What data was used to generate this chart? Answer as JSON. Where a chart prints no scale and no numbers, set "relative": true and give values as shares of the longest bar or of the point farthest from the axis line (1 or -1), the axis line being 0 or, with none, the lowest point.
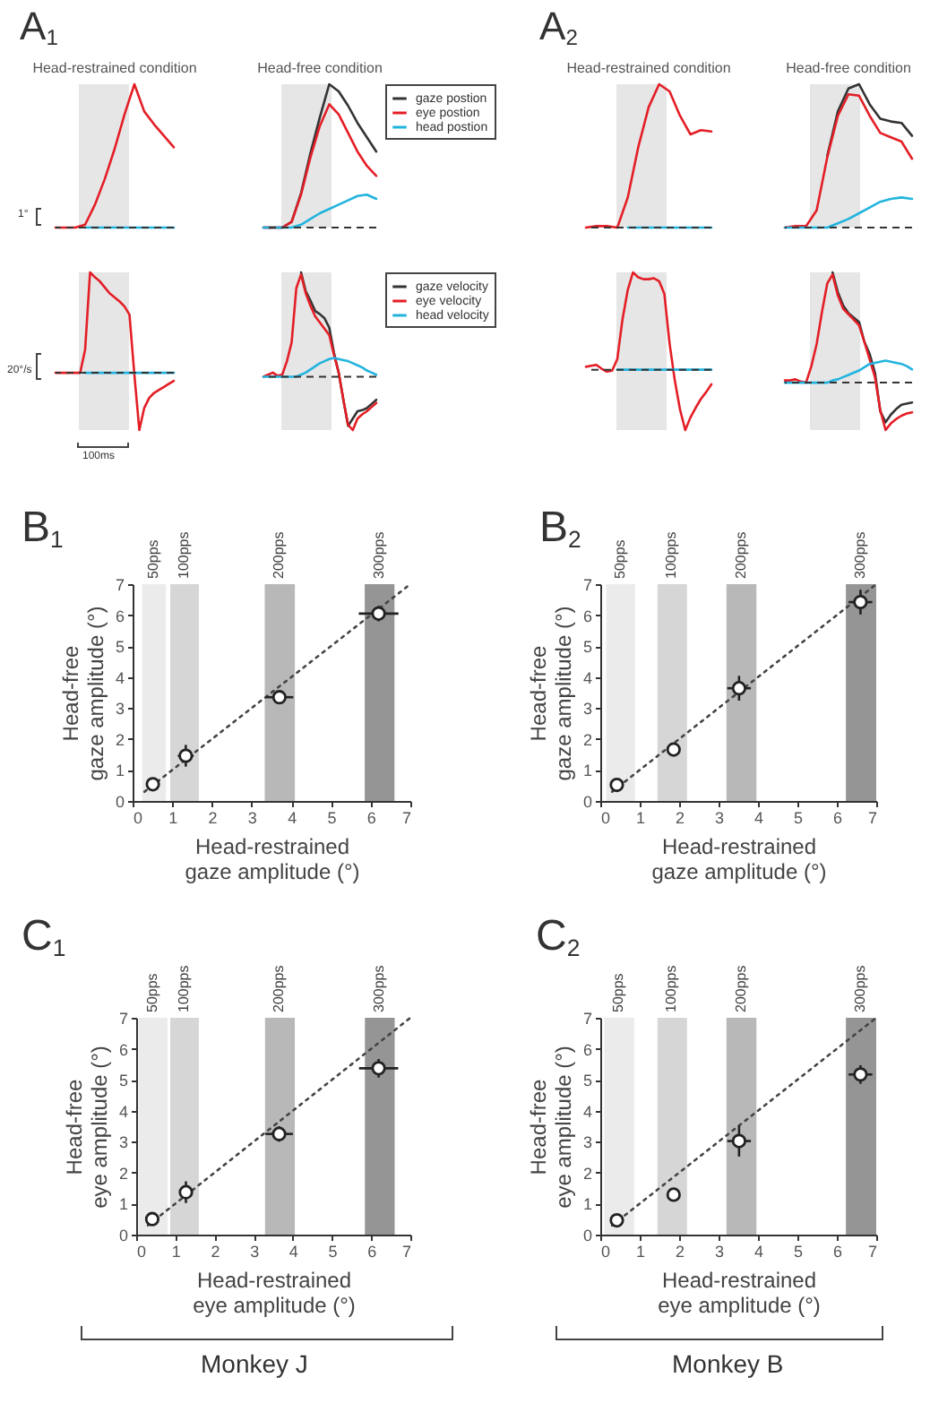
{
  "chart_data": [
    {
      "type": "line",
      "title": "Head-restrained condition",
      "relative": true,
      "tick_labels": false,
      "annotations": [
        "A$_{1}$",
        "1°"
      ],
      "categories": [
        null,
        null,
        null,
        null,
        null,
        null,
        null,
        null,
        null,
        null,
        null,
        null,
        null
      ],
      "ref_lines": [
        {
          "axis": "y",
          "value": 0,
          "line_style": "dashed",
          "color": "#333333"
        }
      ],
      "series": [
        {
          "color": "#e41e26",
          "values": [
            0,
            0,
            0,
            0.02,
            0.16,
            0.34,
            0.55,
            0.79,
            1,
            0.81,
            0.72,
            0.64,
            0.56
          ]
        },
        {
          "color": "#22b4de",
          "values": [
            null,
            null,
            null,
            0,
            0,
            0,
            0,
            0,
            0,
            0,
            0,
            0,
            0
          ]
        }
      ]
    },
    {
      "type": "line",
      "title": "Head-free condition",
      "relative": true,
      "tick_labels": false,
      "legend": "right",
      "categories": [
        null,
        null,
        null,
        null,
        null,
        null,
        null,
        null,
        null,
        null,
        null,
        null,
        null
      ],
      "ref_lines": [
        {
          "axis": "y",
          "value": 0,
          "line_style": "dashed",
          "color": "#333333"
        }
      ],
      "series": [
        {
          "name": "gaze postion",
          "color": "#333333",
          "values": [
            0,
            0,
            0,
            0.04,
            0.24,
            0.52,
            0.77,
            1,
            0.95,
            0.85,
            0.73,
            0.63,
            0.53
          ]
        },
        {
          "name": "eye postion",
          "color": "#e41e26",
          "values": [
            0,
            0,
            0,
            0.04,
            0.23,
            0.49,
            0.71,
            0.86,
            0.79,
            0.66,
            0.53,
            0.43,
            0.36
          ]
        },
        {
          "name": "head postion",
          "color": "#22b4de",
          "values": [
            0,
            0,
            0,
            0,
            0.02,
            0.06,
            0.1,
            0.13,
            0.16,
            0.19,
            0.22,
            0.23,
            0.2
          ]
        }
      ]
    },
    {
      "type": "line",
      "title": "Head-restrained condition",
      "relative": true,
      "tick_labels": false,
      "annotations": [
        "A$_{2}$"
      ],
      "categories": [
        null,
        null,
        null,
        null,
        null,
        null,
        null,
        null,
        null,
        null,
        null,
        null,
        null
      ],
      "ref_lines": [
        {
          "axis": "y",
          "value": 0,
          "line_style": "dashed",
          "color": "#333333"
        }
      ],
      "series": [
        {
          "color": "#e41e26",
          "values": [
            0,
            0.01,
            0.01,
            0,
            0.21,
            0.56,
            0.84,
            1,
            0.95,
            0.78,
            0.65,
            0.68,
            0.67
          ]
        },
        {
          "color": "#22b4de",
          "values": [
            null,
            null,
            null,
            null,
            0,
            0,
            0,
            0,
            0,
            0,
            0,
            0,
            0
          ]
        }
      ]
    },
    {
      "type": "line",
      "title": "Head-free condition",
      "relative": true,
      "tick_labels": false,
      "categories": [
        null,
        null,
        null,
        null,
        null,
        null,
        null,
        null,
        null,
        null,
        null,
        null,
        null
      ],
      "ref_lines": [
        {
          "axis": "y",
          "value": 0,
          "line_style": "dashed",
          "color": "#333333"
        }
      ],
      "series": [
        {
          "color": "#333333",
          "values": [
            null,
            null,
            null,
            null,
            0.5,
            0.81,
            0.97,
            1,
            0.86,
            0.76,
            0.74,
            0.73,
            0.64
          ]
        },
        {
          "color": "#e41e26",
          "values": [
            0,
            0.01,
            0.01,
            0.12,
            0.49,
            0.78,
            0.93,
            0.92,
            0.78,
            0.66,
            0.63,
            0.6,
            0.48
          ]
        },
        {
          "color": "#22b4de",
          "values": [
            0,
            0,
            0,
            0,
            0,
            0.03,
            0.06,
            0.1,
            0.14,
            0.18,
            0.2,
            0.21,
            0.2
          ]
        }
      ]
    },
    {
      "type": "line",
      "relative": true,
      "tick_labels": false,
      "annotations": [
        "20°/s",
        "100ms"
      ],
      "categories": [
        null,
        null,
        null,
        null,
        null,
        null,
        null,
        null,
        null,
        null,
        null,
        null,
        null,
        null,
        null,
        null,
        null,
        null,
        null,
        null,
        null,
        null,
        null,
        null,
        null
      ],
      "ref_lines": [
        {
          "axis": "y",
          "value": 0,
          "line_style": "dashed",
          "color": "#333333"
        }
      ],
      "series": [
        {
          "color": "#e41e26",
          "values": [
            0,
            0,
            0,
            0,
            0,
            0,
            0.23,
            1,
            0.95,
            0.91,
            0.85,
            0.79,
            0.75,
            0.71,
            0.66,
            0.58,
            -0.02,
            -0.57,
            -0.35,
            -0.25,
            -0.2,
            -0.17,
            -0.14,
            -0.11,
            -0.08
          ]
        },
        {
          "color": "#22b4de",
          "values": [
            null,
            null,
            null,
            null,
            null,
            null,
            0,
            0,
            0,
            0,
            0,
            0,
            0,
            0,
            0,
            0,
            0,
            0,
            0,
            0,
            0,
            0,
            0,
            0,
            0
          ]
        }
      ]
    },
    {
      "type": "line",
      "relative": true,
      "tick_labels": false,
      "legend": "right",
      "categories": [
        null,
        null,
        null,
        null,
        null,
        null,
        null,
        null,
        null,
        null,
        null,
        null,
        null,
        null,
        null,
        null,
        null,
        null,
        null,
        null,
        null,
        null,
        null,
        null,
        null
      ],
      "ref_lines": [
        {
          "axis": "y",
          "value": 0,
          "line_style": "dashed",
          "color": "#333333"
        }
      ],
      "series": [
        {
          "name": "gaze velocity",
          "color": "#333333",
          "values": [
            null,
            null,
            null,
            null,
            null,
            null,
            null,
            null,
            1,
            0.82,
            0.73,
            0.63,
            0.6,
            0.56,
            0.47,
            0.23,
            0.04,
            -0.22,
            -0.47,
            -0.4,
            -0.33,
            -0.32,
            -0.3,
            -0.26,
            -0.22
          ]
        },
        {
          "name": "eye velocity",
          "color": "#e41e26",
          "values": [
            0,
            0.02,
            0.04,
            0.01,
            0.02,
            0.15,
            0.33,
            0.85,
            0.98,
            0.8,
            0.68,
            0.58,
            0.52,
            0.46,
            0.4,
            0.21,
            0.04,
            -0.22,
            -0.46,
            -0.51,
            -0.4,
            -0.36,
            -0.33,
            -0.29,
            -0.25
          ]
        },
        {
          "name": "head velocity",
          "color": "#22b4de",
          "values": [
            0,
            0,
            0,
            0,
            0,
            0,
            0,
            0,
            0.02,
            0.04,
            0.07,
            0.1,
            0.13,
            0.15,
            0.17,
            0.18,
            0.17,
            0.16,
            0.15,
            0.13,
            0.11,
            0.09,
            0.06,
            0.04,
            0.02
          ]
        }
      ]
    },
    {
      "type": "line",
      "relative": true,
      "tick_labels": false,
      "categories": [
        null,
        null,
        null,
        null,
        null,
        null,
        null,
        null,
        null,
        null,
        null,
        null,
        null,
        null,
        null,
        null,
        null,
        null,
        null,
        null,
        null,
        null,
        null,
        null,
        null
      ],
      "ref_lines": [
        {
          "axis": "y",
          "value": 0,
          "line_style": "dashed",
          "color": "#333333"
        }
      ],
      "series": [
        {
          "color": "#e41e26",
          "values": [
            0.03,
            0.04,
            0.05,
            0.01,
            -0.02,
            -0.01,
            0.11,
            0.52,
            0.82,
            1,
            0.95,
            0.93,
            0.93,
            0.94,
            0.91,
            0.78,
            0.27,
            -0.11,
            -0.41,
            -0.62,
            -0.49,
            -0.39,
            -0.3,
            -0.23,
            -0.15
          ]
        },
        {
          "color": "#22b4de",
          "values": [
            null,
            null,
            null,
            null,
            null,
            null,
            0,
            0,
            0,
            0,
            0,
            0,
            0,
            0,
            0,
            0,
            0,
            0,
            0,
            0,
            0,
            0,
            0,
            0,
            0
          ]
        }
      ]
    },
    {
      "type": "line",
      "relative": true,
      "tick_labels": false,
      "categories": [
        null,
        null,
        null,
        null,
        null,
        null,
        null,
        null,
        null,
        null,
        null,
        null,
        null,
        null,
        null,
        null,
        null,
        null,
        null,
        null,
        null,
        null,
        null,
        null,
        null
      ],
      "ref_lines": [
        {
          "axis": "y",
          "value": 0,
          "line_style": "dashed",
          "color": "#333333"
        }
      ],
      "series": [
        {
          "color": "#333333",
          "values": [
            null,
            null,
            null,
            null,
            null,
            null,
            null,
            null,
            null,
            1,
            0.82,
            0.7,
            0.63,
            0.59,
            0.55,
            0.37,
            0.26,
            0.09,
            -0.26,
            -0.36,
            -0.29,
            -0.24,
            -0.2,
            -0.19,
            -0.18
          ]
        },
        {
          "color": "#e41e26",
          "values": [
            0.02,
            0.02,
            0.03,
            0.01,
            0,
            0.15,
            0.35,
            0.64,
            0.9,
            0.98,
            0.79,
            0.67,
            0.62,
            0.57,
            0.52,
            0.37,
            0.21,
            0.05,
            -0.25,
            -0.43,
            -0.37,
            -0.33,
            -0.3,
            -0.28,
            -0.27
          ]
        },
        {
          "color": "#22b4de",
          "values": [
            0,
            0,
            0,
            0,
            0,
            0,
            0,
            0,
            0,
            0.02,
            0.03,
            0.05,
            0.07,
            0.09,
            0.11,
            0.14,
            0.17,
            0.18,
            0.19,
            0.2,
            0.19,
            0.18,
            0.17,
            0.15,
            0.12
          ]
        }
      ]
    },
    {
      "type": "scatter",
      "xlabel": "Head-restrained\ngaze amplitude (°)",
      "ylabel": "Head-free\ngaze amplitude (°)",
      "xlim": [
        0,
        7
      ],
      "ylim": [
        0,
        7
      ],
      "xticks": [
        0,
        1,
        2,
        3,
        4,
        5,
        6,
        7
      ],
      "yticks": [
        0,
        1,
        2,
        3,
        4,
        5,
        6,
        7
      ],
      "annotations": [
        "B$_{1}$"
      ],
      "bands": [
        {
          "axis": "x",
          "from": 0.24,
          "to": 0.84,
          "label": "50pps",
          "color": "#ebebeb"
        },
        {
          "axis": "x",
          "from": 0.95,
          "to": 1.67,
          "label": "100pps",
          "color": "#d6d6d6"
        },
        {
          "axis": "x",
          "from": 3.33,
          "to": 4.09,
          "label": "200pps",
          "color": "#b8b8b8"
        },
        {
          "axis": "x",
          "from": 5.85,
          "to": 6.6,
          "label": "300pps",
          "color": "#959595"
        }
      ],
      "series": [
        {
          "type": "line",
          "line_style": "dotted",
          "color": "#444444",
          "x": [
            0.3,
            7
          ],
          "values": [
            0.3,
            7
          ]
        },
        {
          "marker": "circle",
          "color": "#ffffff",
          "x": [
            0.51,
            1.34,
            3.7,
            6.2
          ],
          "values": [
            0.54,
            1.46,
            3.35,
            6.05
          ],
          "xerrors": [
            null,
            0.2,
            0.35,
            0.5
          ],
          "errors": [
            null,
            0.35,
            0.2,
            0.25
          ]
        }
      ]
    },
    {
      "type": "scatter",
      "xlabel": "Head-restrained\ngaze amplitude (°)",
      "ylabel": "Head-free\ngaze amplitude (°)",
      "xlim": [
        0,
        7
      ],
      "ylim": [
        0,
        7
      ],
      "xticks": [
        0,
        1,
        2,
        3,
        4,
        5,
        6,
        7
      ],
      "yticks": [
        0,
        1,
        2,
        3,
        4,
        5,
        6,
        7
      ],
      "annotations": [
        "B$_{2}$"
      ],
      "bands": [
        {
          "axis": "x",
          "from": 0.15,
          "to": 0.88,
          "label": "50pps",
          "color": "#ebebeb"
        },
        {
          "axis": "x",
          "from": 1.45,
          "to": 2.2,
          "label": "100pps",
          "color": "#d6d6d6"
        },
        {
          "axis": "x",
          "from": 3.2,
          "to": 3.96,
          "label": "200pps",
          "color": "#b8b8b8"
        },
        {
          "axis": "x",
          "from": 6.23,
          "to": 7,
          "label": "300pps",
          "color": "#959595"
        }
      ],
      "series": [
        {
          "type": "line",
          "line_style": "dotted",
          "color": "#444444",
          "x": [
            0.3,
            7
          ],
          "values": [
            0.3,
            7
          ]
        },
        {
          "marker": "circle",
          "color": "#ffffff",
          "x": [
            0.42,
            1.86,
            3.52,
            6.6
          ],
          "values": [
            0.52,
            1.66,
            3.64,
            6.42
          ],
          "xerrors": [
            null,
            null,
            0.3,
            0.3
          ],
          "errors": [
            null,
            null,
            0.4,
            0.4
          ]
        }
      ]
    },
    {
      "type": "scatter",
      "xlabel": "Head-restrained\neye amplitude (°)",
      "ylabel": "Head-free\neye amplitude (°)",
      "xlim": [
        0,
        7
      ],
      "ylim": [
        0,
        7
      ],
      "xticks": [
        0,
        1,
        2,
        3,
        4,
        5,
        6,
        7
      ],
      "yticks": [
        0,
        1,
        2,
        3,
        4,
        5,
        6,
        7
      ],
      "annotations": [
        "C$_{1}$",
        "Monkey J"
      ],
      "bands": [
        {
          "axis": "x",
          "from": 0.06,
          "to": 0.8,
          "label": "50pps",
          "color": "#ebebeb"
        },
        {
          "axis": "x",
          "from": 0.87,
          "to": 1.6,
          "label": "100pps",
          "color": "#d6d6d6"
        },
        {
          "axis": "x",
          "from": 3.29,
          "to": 4.05,
          "label": "200pps",
          "color": "#b8b8b8"
        },
        {
          "axis": "x",
          "from": 5.84,
          "to": 6.6,
          "label": "300pps",
          "color": "#959595"
        }
      ],
      "series": [
        {
          "type": "line",
          "line_style": "dotted",
          "color": "#444444",
          "x": [
            0.3,
            7
          ],
          "values": [
            0.3,
            7
          ]
        },
        {
          "marker": "circle",
          "color": "#ffffff",
          "x": [
            0.41,
            1.27,
            3.65,
            6.19
          ],
          "values": [
            0.5,
            1.37,
            3.25,
            5.37
          ],
          "xerrors": [
            null,
            0.15,
            0.35,
            0.5
          ],
          "errors": [
            null,
            0.35,
            0.25,
            0.3
          ]
        }
      ]
    },
    {
      "type": "scatter",
      "xlabel": "Head-restrained\neye amplitude (°)",
      "ylabel": "Head-free\neye amplitude (°)",
      "xlim": [
        0,
        7
      ],
      "ylim": [
        0,
        7
      ],
      "xticks": [
        0,
        1,
        2,
        3,
        4,
        5,
        6,
        7
      ],
      "yticks": [
        0,
        1,
        2,
        3,
        4,
        5,
        6,
        7
      ],
      "annotations": [
        "C$_{2}$",
        "Monkey B"
      ],
      "bands": [
        {
          "axis": "x",
          "from": 0.1,
          "to": 0.86,
          "label": "50pps",
          "color": "#ebebeb"
        },
        {
          "axis": "x",
          "from": 1.45,
          "to": 2.2,
          "label": "100pps",
          "color": "#d6d6d6"
        },
        {
          "axis": "x",
          "from": 3.2,
          "to": 3.96,
          "label": "200pps",
          "color": "#b8b8b8"
        },
        {
          "axis": "x",
          "from": 6.23,
          "to": 7,
          "label": "300pps",
          "color": "#959595"
        }
      ],
      "series": [
        {
          "type": "line",
          "line_style": "dotted",
          "color": "#444444",
          "x": [
            0.3,
            7
          ],
          "values": [
            0.3,
            7
          ]
        },
        {
          "marker": "circle",
          "color": "#ffffff",
          "x": [
            0.42,
            1.86,
            3.52,
            6.6
          ],
          "values": [
            0.46,
            1.29,
            3.02,
            5.17
          ],
          "xerrors": [
            null,
            null,
            0.3,
            0.3
          ],
          "errors": [
            null,
            null,
            0.5,
            0.3
          ]
        }
      ]
    }
  ]
}
